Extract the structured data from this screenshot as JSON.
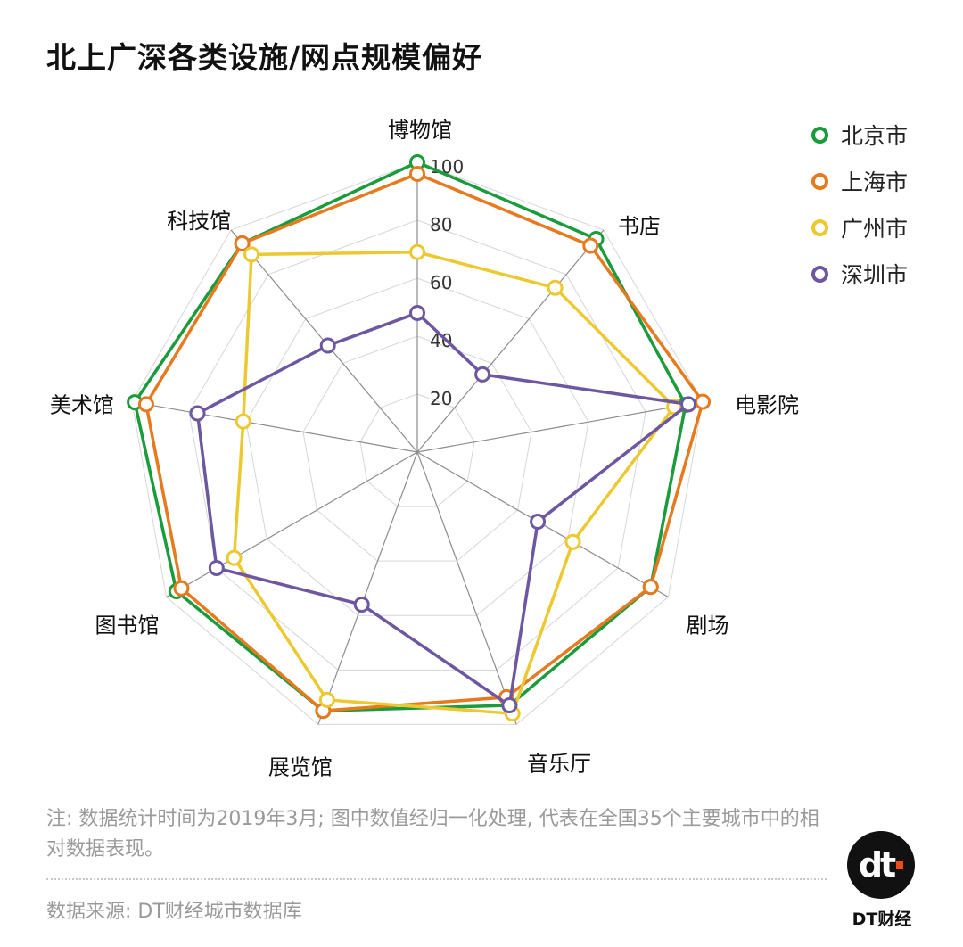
{
  "title": "北上广深各类设施/网点规模偏好",
  "chart_data": {
    "type": "radar",
    "categories": [
      "博物馆",
      "书店",
      "电影院",
      "剧场",
      "音乐厅",
      "展览馆",
      "图书馆",
      "美术馆",
      "科技馆"
    ],
    "ticks": [
      "20",
      "40",
      "60",
      "80",
      "100"
    ],
    "rrange": [
      0,
      100
    ],
    "series": [
      {
        "name": "北京市",
        "color": "#1a9b3c",
        "values": [
          100,
          96,
          94,
          93,
          93,
          95,
          96,
          99,
          94
        ]
      },
      {
        "name": "上海市",
        "color": "#e57a1e",
        "values": [
          96,
          93,
          100,
          93,
          90,
          95,
          94,
          95,
          94
        ]
      },
      {
        "name": "广州市",
        "color": "#ecc931",
        "values": [
          69,
          74,
          90,
          62,
          96,
          91,
          73,
          61,
          89
        ]
      },
      {
        "name": "深圳市",
        "color": "#6e57a1",
        "values": [
          48,
          35,
          95,
          48,
          93,
          56,
          80,
          77,
          48
        ]
      }
    ],
    "grid": true,
    "legend": "top-right"
  },
  "note": "注: 数据统计时间为2019年3月; 图中数值经归一化处理, 代表在全国35个主要城市中的相对数据表现。",
  "source": "数据来源: DT财经城市数据库",
  "brand": {
    "logo_text": "DT财经",
    "logo_glyph": "dt"
  }
}
